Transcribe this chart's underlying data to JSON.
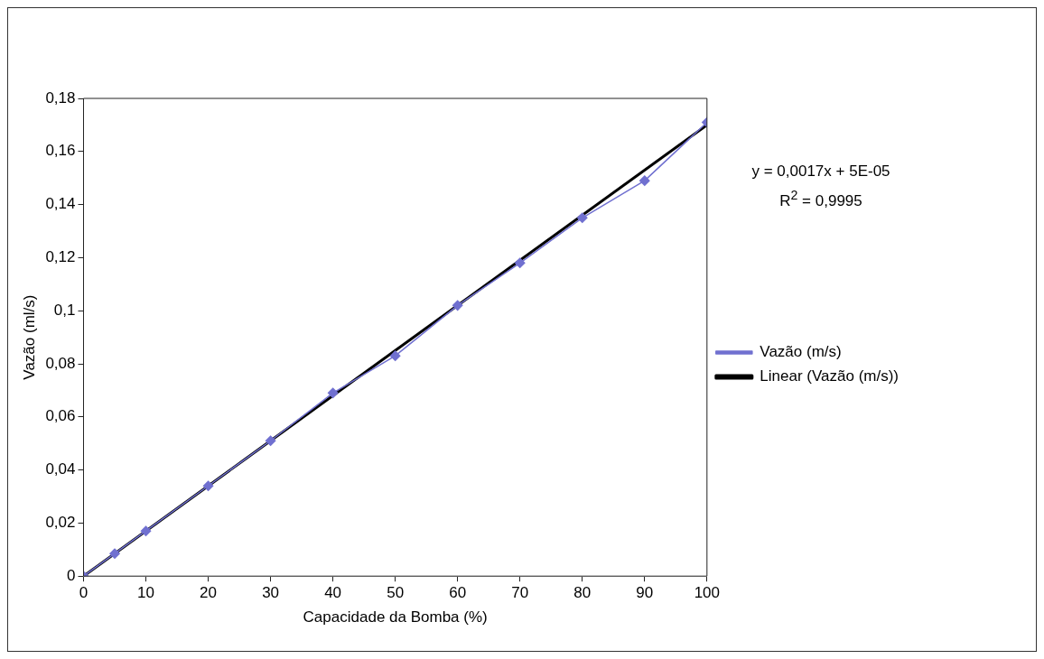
{
  "chart_data": {
    "type": "line",
    "xlabel": "Capacidade da Bomba (%)",
    "ylabel": "Vazão (ml/s)",
    "x": [
      0,
      5,
      10,
      20,
      30,
      40,
      50,
      60,
      70,
      80,
      90,
      100
    ],
    "series": [
      {
        "name": "Vazão (m/s)",
        "color": "#7070d0",
        "values": [
          0,
          0.0085,
          0.017,
          0.034,
          0.051,
          0.069,
          0.083,
          0.102,
          0.118,
          0.135,
          0.149,
          0.171
        ],
        "marker": "diamond"
      },
      {
        "name": "Linear (Vazão (m/s))",
        "color": "#000000",
        "type": "line",
        "x": [
          0,
          100
        ],
        "values": [
          0,
          0.17
        ],
        "marker": "none"
      }
    ],
    "xlim": [
      0,
      100
    ],
    "xticks": [
      0,
      10,
      20,
      30,
      40,
      50,
      60,
      70,
      80,
      90,
      100
    ],
    "ylim": [
      0,
      0.18
    ],
    "yticks": [
      {
        "value": 0,
        "label": "0"
      },
      {
        "value": 0.02,
        "label": "0,02"
      },
      {
        "value": 0.04,
        "label": "0,04"
      },
      {
        "value": 0.06,
        "label": "0,06"
      },
      {
        "value": 0.08,
        "label": "0,08"
      },
      {
        "value": 0.1,
        "label": "0,1"
      },
      {
        "value": 0.12,
        "label": "0,12"
      },
      {
        "value": 0.14,
        "label": "0,14"
      },
      {
        "value": 0.16,
        "label": "0,16"
      },
      {
        "value": 0.18,
        "label": "0,18"
      }
    ],
    "grid": false,
    "legend": "right",
    "annotations": [
      "y = 0,0017x + 5E-05",
      "R$^{2}$ = 0,9995"
    ]
  }
}
